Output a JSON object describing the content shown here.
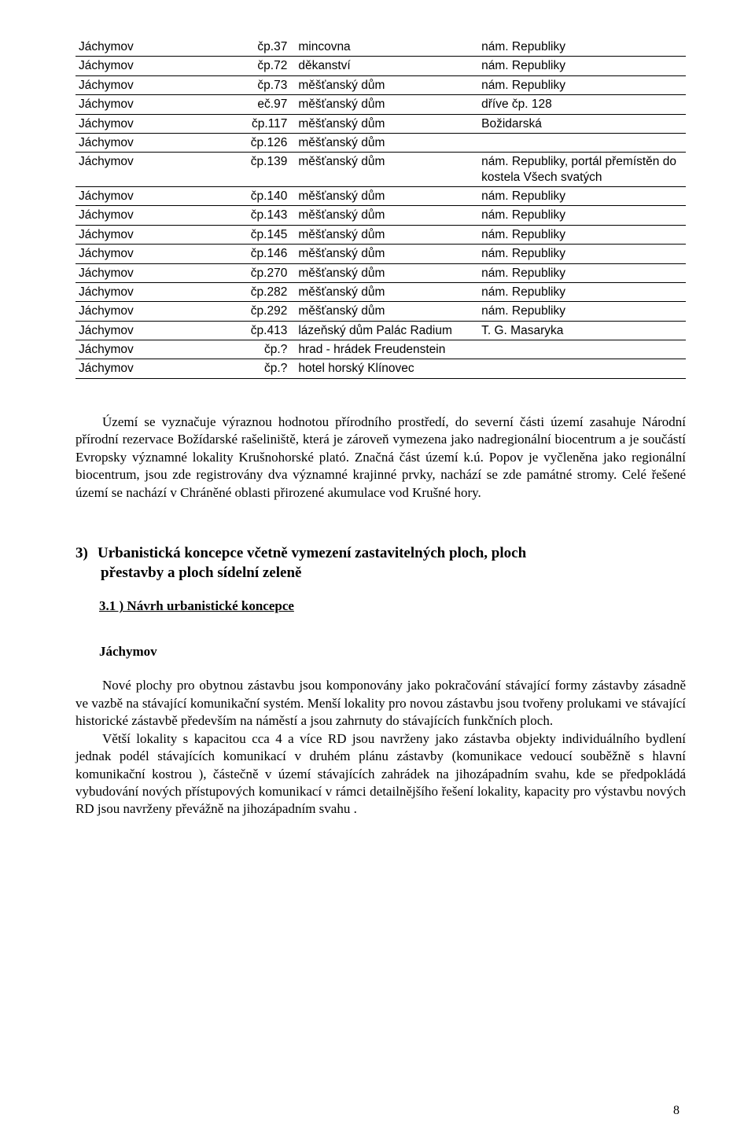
{
  "table": {
    "rows": [
      [
        "Jáchymov",
        "čp.37",
        "mincovna",
        "nám. Republiky"
      ],
      [
        "Jáchymov",
        "čp.72",
        "děkanství",
        "nám. Republiky"
      ],
      [
        "Jáchymov",
        "čp.73",
        "měšťanský dům",
        "nám. Republiky"
      ],
      [
        "Jáchymov",
        "eč.97",
        "měšťanský dům",
        "dříve čp. 128"
      ],
      [
        "Jáchymov",
        "čp.117",
        "měšťanský dům",
        "Božidarská"
      ],
      [
        "Jáchymov",
        "čp.126",
        "měšťanský dům",
        ""
      ],
      [
        "Jáchymov",
        "čp.139",
        "měšťanský dům",
        "nám. Republiky, portál přemístěn do kostela Všech svatých"
      ],
      [
        "Jáchymov",
        "čp.140",
        "měšťanský dům",
        "nám. Republiky"
      ],
      [
        "Jáchymov",
        "čp.143",
        "měšťanský dům",
        "nám. Republiky"
      ],
      [
        "Jáchymov",
        "čp.145",
        "měšťanský dům",
        "nám. Republiky"
      ],
      [
        "Jáchymov",
        "čp.146",
        "měšťanský dům",
        "nám. Republiky"
      ],
      [
        "Jáchymov",
        "čp.270",
        "měšťanský dům",
        "nám. Republiky"
      ],
      [
        "Jáchymov",
        "čp.282",
        "měšťanský dům",
        "nám. Republiky"
      ],
      [
        "Jáchymov",
        "čp.292",
        "měšťanský dům",
        "nám. Republiky"
      ],
      [
        "Jáchymov",
        "čp.413",
        "lázeňský dům Palác Radium",
        "T. G. Masaryka"
      ],
      [
        "Jáchymov",
        "čp.?",
        "hrad - hrádek Freudenstein",
        ""
      ],
      [
        "Jáchymov",
        "čp.?",
        "hotel horský Klínovec",
        ""
      ]
    ]
  },
  "para1": "Území se vyznačuje výraznou hodnotou přírodního prostředí, do  severní části území zasahuje Národní přírodní rezervace Božídarské rašeliniště, která je zároveň vymezena jako nadregionální biocentrum a je součástí Evropsky významné lokality Krušnohorské plató. Značná část území k.ú. Popov je vyčleněna jako regionální biocentrum, jsou zde registrovány dva významné krajinné prvky, nachází se zde památné stromy. Celé řešené území se nachází v Chráněné oblasti přirozené akumulace vod Krušné hory.",
  "heading3_num": "3)",
  "heading3_line1": "Urbanistická koncepce včetně vymezení zastavitelných ploch, ploch",
  "heading3_line2": "přestavby a ploch sídelní zeleně",
  "heading4": "3.1 ) Návrh urbanistické koncepce",
  "subhead": "Jáchymov",
  "para2_a": "Nové plochy pro obytnou zástavbu jsou komponovány jako pokračování stávající formy zástavby zásadně  ve vazbě na stávající komunikační systém. Menší lokality pro novou zástavbu jsou tvořeny prolukami ve stávající historické zástavbě především na náměstí a jsou zahrnuty do stávajících funkčních ploch.",
  "para2_b": "Větší lokality s kapacitou cca  4 a více RD jsou navrženy jako zástavba objekty individuálního bydlení jednak podél stávajících komunikací v druhém plánu zástavby (komunikace vedoucí souběžně s hlavní komunikační kostrou ), částečně v území stávajících zahrádek na jihozápadním svahu, kde se předpokládá vybudování nových přístupových komunikací v rámci detailnějšího řešení lokality, kapacity pro výstavbu nových RD jsou navrženy převážně na jihozápadním svahu .",
  "page_number": "8"
}
